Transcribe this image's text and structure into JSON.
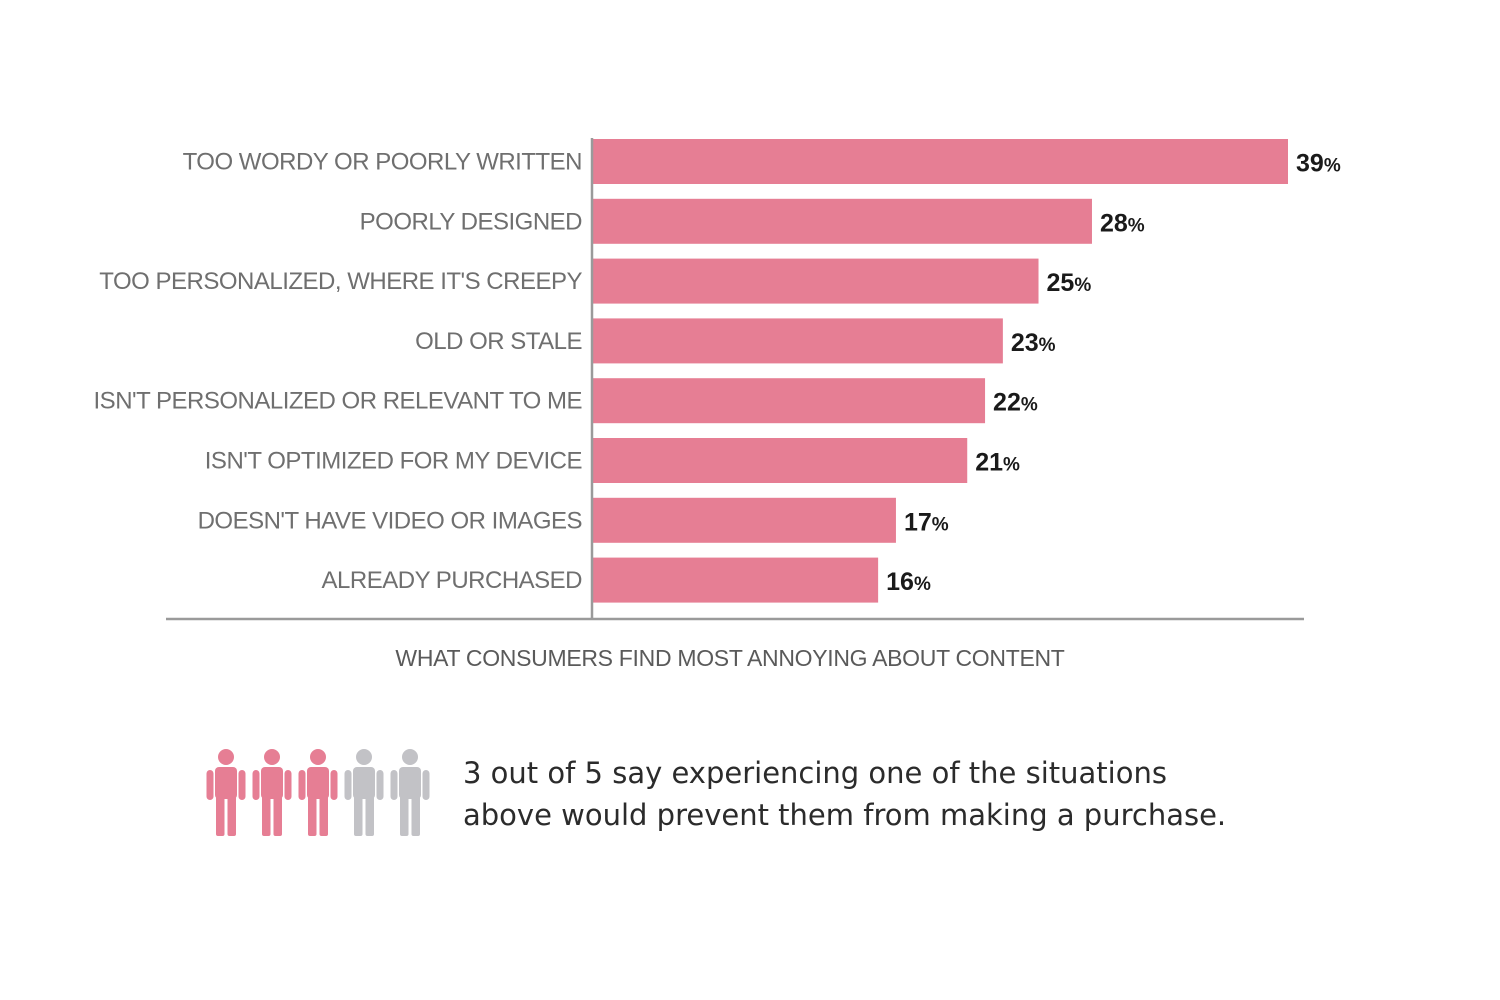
{
  "chart_data": {
    "type": "bar",
    "orientation": "horizontal",
    "categories": [
      "TOO WORDY OR POORLY WRITTEN",
      "POORLY DESIGNED",
      "TOO PERSONALIZED, WHERE IT'S CREEPY",
      "OLD OR STALE",
      "ISN'T PERSONALIZED OR RELEVANT TO ME",
      "ISN'T OPTIMIZED FOR MY DEVICE",
      "DOESN'T HAVE VIDEO OR IMAGES",
      "ALREADY PURCHASED"
    ],
    "values": [
      39,
      28,
      25,
      23,
      22,
      21,
      17,
      16
    ],
    "value_suffix": "%",
    "xlim": [
      0,
      39
    ],
    "xlabel": "WHAT CONSUMERS FIND MOST ANNOYING ABOUT CONTENT",
    "grid": false,
    "bar_color": "#e67e94"
  },
  "stat": {
    "line1": "3 out of 5 say experiencing one of the situations",
    "line2": "above would prevent them from making a purchase.",
    "people_total": 5,
    "people_highlighted": 3,
    "highlight_color": "#e67e94",
    "muted_color": "#c2c2c6"
  },
  "colors": {
    "axis": "#9a9a9a"
  }
}
